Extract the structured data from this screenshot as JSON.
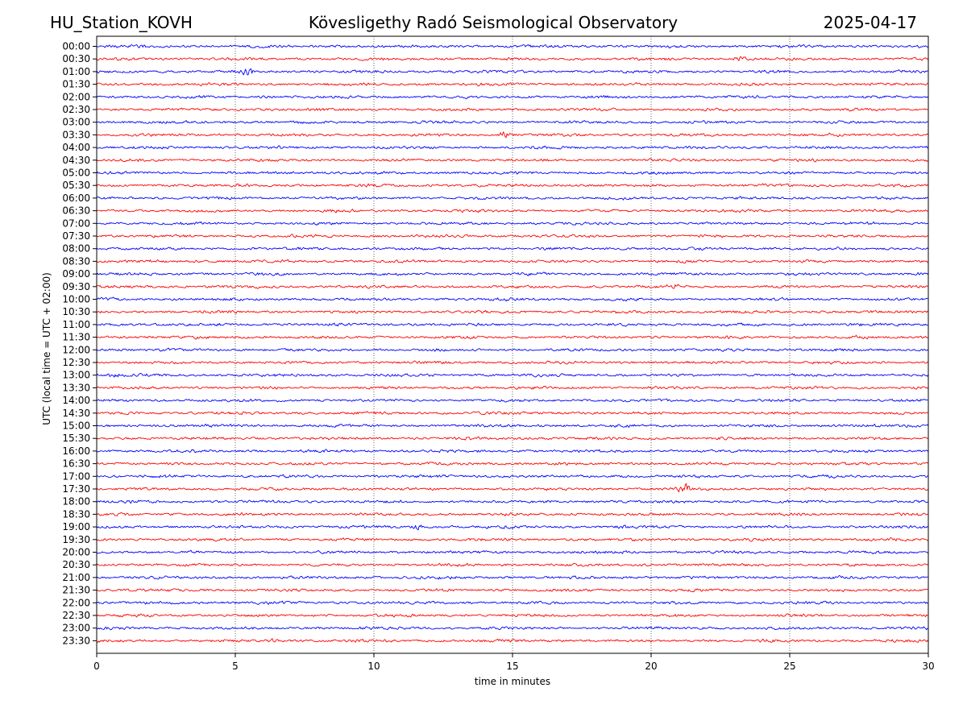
{
  "header": {
    "station": "HU_Station_KOVH",
    "observatory": "Kövesligethy Radó Seismological Observatory",
    "date": "2025-04-17"
  },
  "chart_data": {
    "type": "line",
    "title": "Kövesligethy Radó Seismological Observatory",
    "xlabel": "time in minutes",
    "ylabel": "UTC (local time = UTC + 02:00)",
    "xlim": [
      0,
      30
    ],
    "x_ticks": [
      0,
      5,
      10,
      15,
      20,
      25,
      30
    ],
    "grid": "vertical dotted lines at 5-minute intervals",
    "trace_colors": [
      "#0000ff",
      "#ff0000"
    ],
    "rows": [
      "00:00",
      "00:30",
      "01:00",
      "01:30",
      "02:00",
      "02:30",
      "03:00",
      "03:30",
      "04:00",
      "04:30",
      "05:00",
      "05:30",
      "06:00",
      "06:30",
      "07:00",
      "07:30",
      "08:00",
      "08:30",
      "09:00",
      "09:30",
      "10:00",
      "10:30",
      "11:00",
      "11:30",
      "12:00",
      "12:30",
      "13:00",
      "13:30",
      "14:00",
      "14:30",
      "15:00",
      "15:30",
      "16:00",
      "16:30",
      "17:00",
      "17:30",
      "18:00",
      "18:30",
      "19:00",
      "19:30",
      "20:00",
      "20:30",
      "21:00",
      "21:30",
      "22:00",
      "22:30",
      "23:00",
      "23:30"
    ],
    "events": [
      {
        "row": "01:00",
        "minute": 5.4,
        "strength": 1.0
      },
      {
        "row": "00:30",
        "minute": 23.2,
        "strength": 0.5
      },
      {
        "row": "03:30",
        "minute": 14.7,
        "strength": 0.7
      },
      {
        "row": "09:30",
        "minute": 20.8,
        "strength": 0.5
      },
      {
        "row": "17:30",
        "minute": 21.2,
        "strength": 0.9
      },
      {
        "row": "13:00",
        "minute": 0.6,
        "strength": 0.4
      },
      {
        "row": "19:00",
        "minute": 11.6,
        "strength": 0.4
      },
      {
        "row": "23:30",
        "minute": 6.2,
        "strength": 0.4
      }
    ]
  }
}
